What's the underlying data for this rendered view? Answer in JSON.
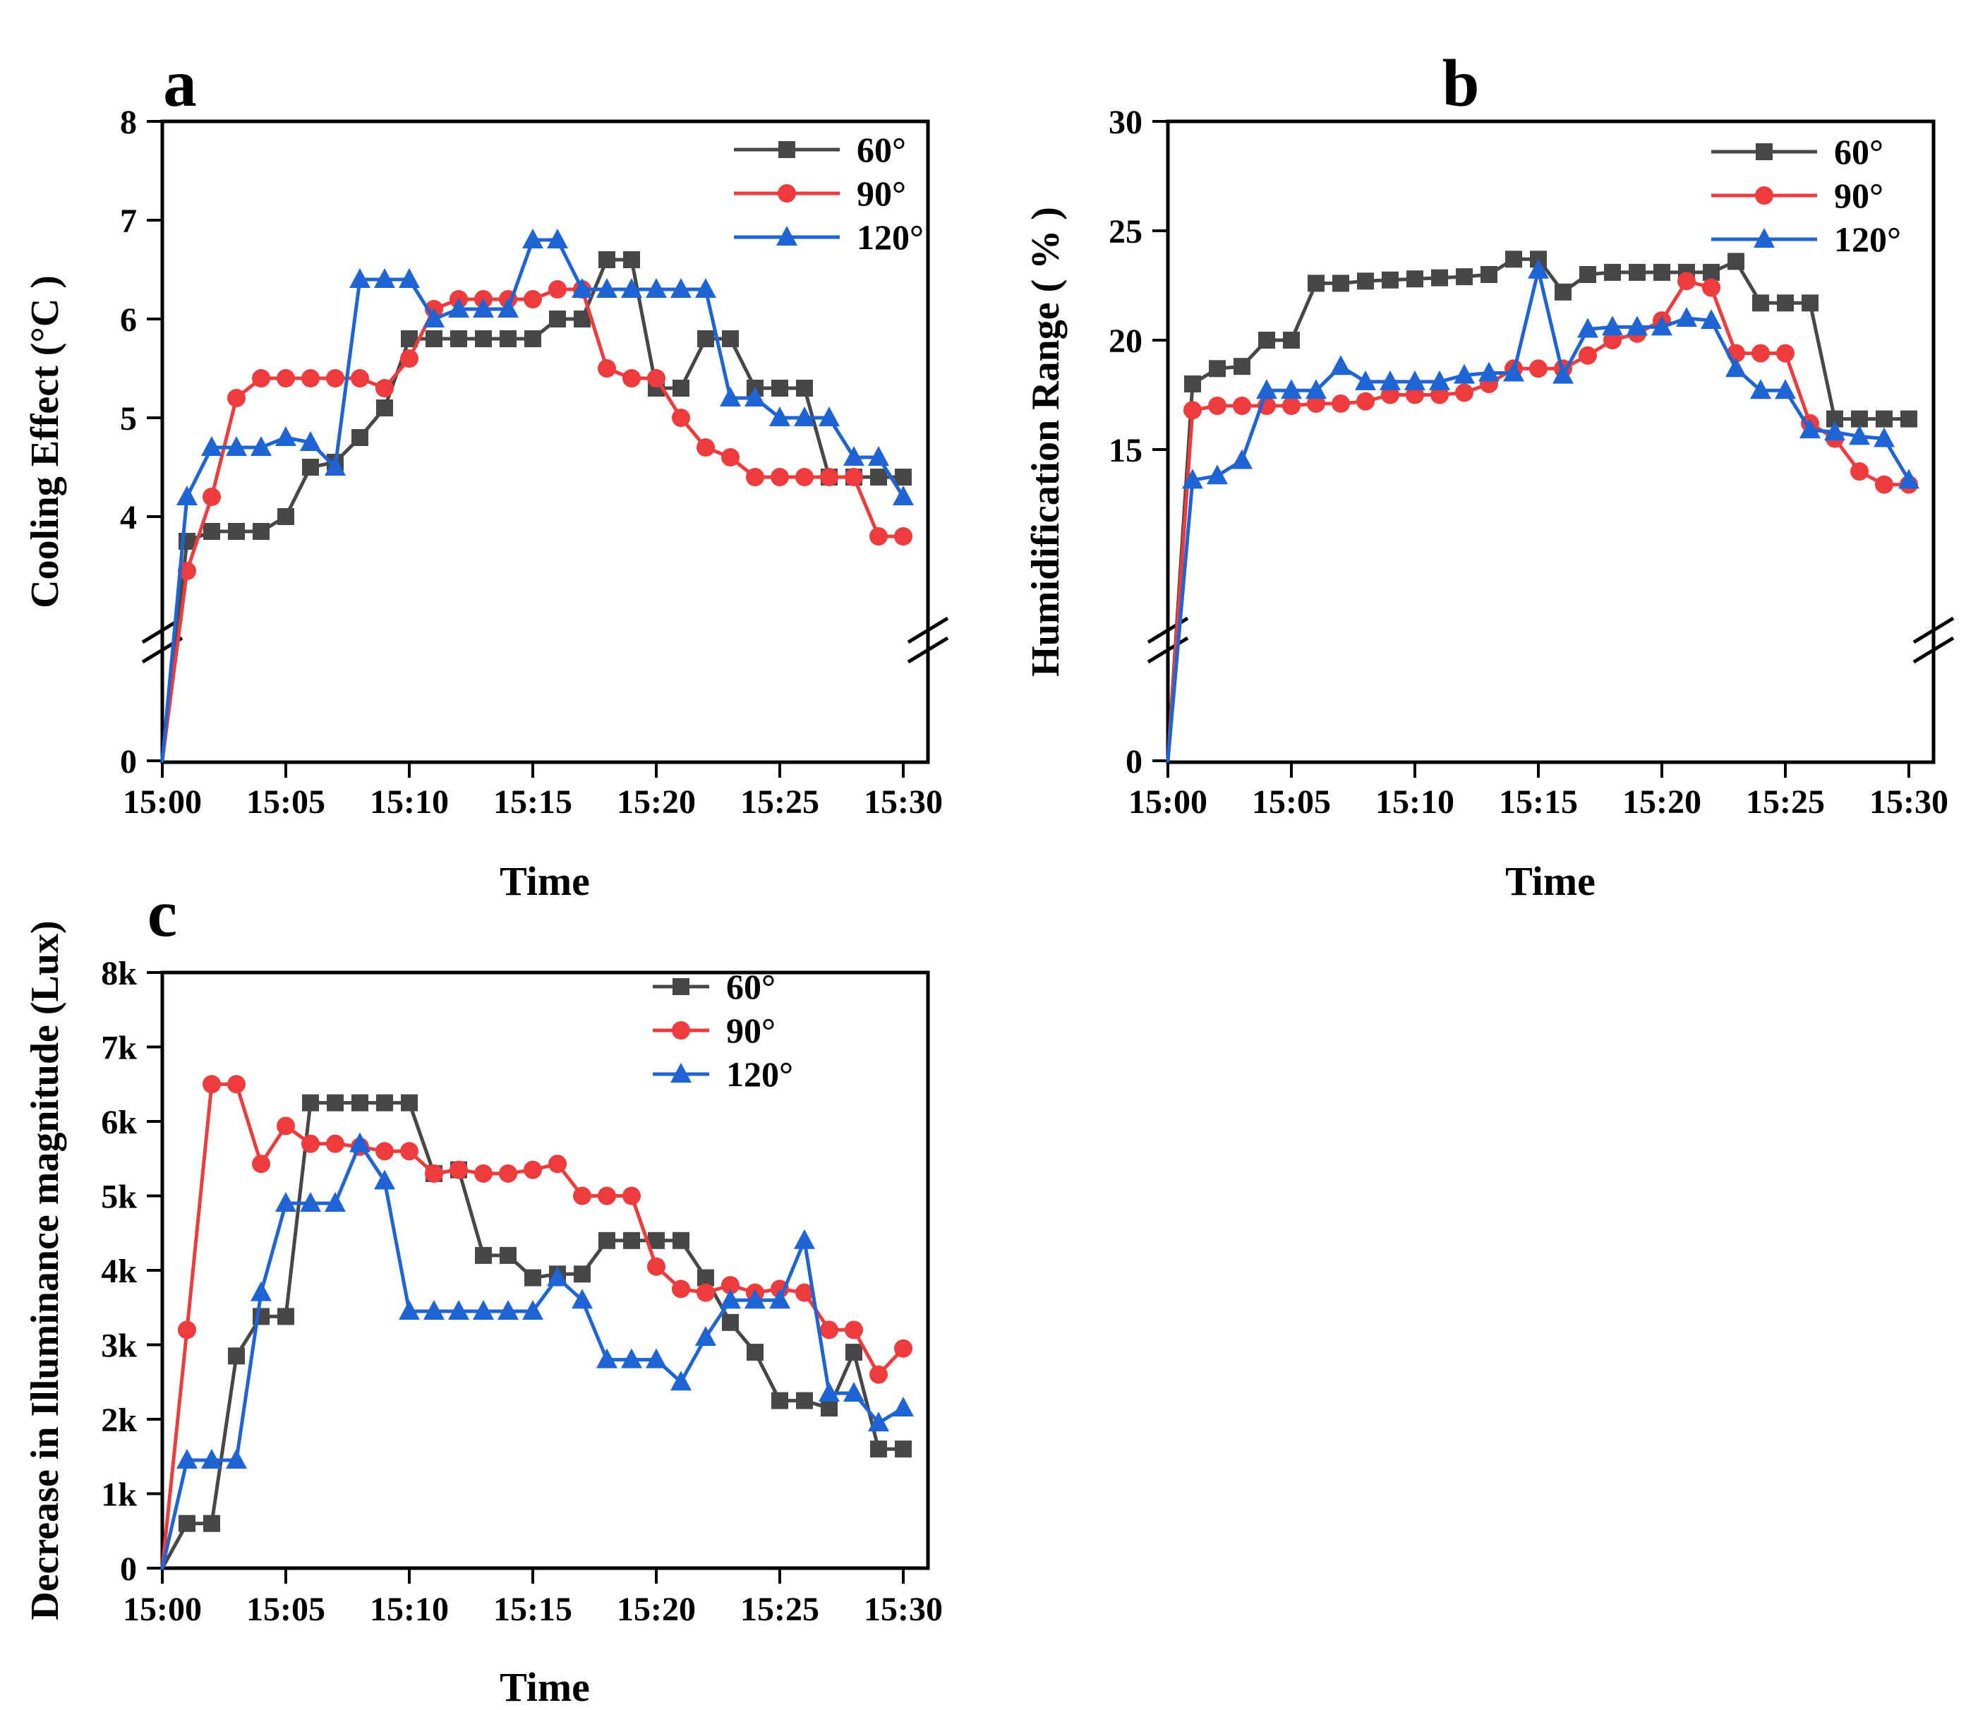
{
  "figure": {
    "background": "#ffffff",
    "panel_labels": [
      "a",
      "b",
      "c"
    ]
  },
  "legend_labels": [
    "60°",
    "90°",
    "120°"
  ],
  "series_colors": {
    "60°": "#474747",
    "90°": "#ee3b3d",
    "120°": "#1f64d4"
  },
  "x_times": [
    "15:00",
    "15:01",
    "15:02",
    "15:03",
    "15:04",
    "15:05",
    "15:06",
    "15:07",
    "15:08",
    "15:09",
    "15:10",
    "15:11",
    "15:12",
    "15:13",
    "15:14",
    "15:15",
    "15:16",
    "15:17",
    "15:18",
    "15:19",
    "15:20",
    "15:21",
    "15:22",
    "15:23",
    "15:24",
    "15:25",
    "15:26",
    "15:27",
    "15:28",
    "15:29",
    "15:30"
  ],
  "chart_data": [
    {
      "id": "a",
      "panel_label": "a",
      "type": "line",
      "title": "",
      "xlabel": "Time",
      "ylabel": "Cooling Effect (°C )",
      "x_tick_labels": [
        "15:00",
        "15:05",
        "15:10",
        "15:15",
        "15:20",
        "15:25",
        "15:30"
      ],
      "ylim": [
        0,
        8
      ],
      "axis_break": true,
      "y_ticks": [
        {
          "v": 0,
          "label": "0"
        },
        {
          "v": 4,
          "label": "4"
        },
        {
          "v": 5,
          "label": "5"
        },
        {
          "v": 6,
          "label": "6"
        },
        {
          "v": 7,
          "label": "7"
        },
        {
          "v": 8,
          "label": "8"
        }
      ],
      "legend_position": "top-right-inside",
      "series": [
        {
          "name": "60°",
          "color": "#474747",
          "marker": "square",
          "values": [
            0,
            3.75,
            3.85,
            3.85,
            3.85,
            4.0,
            4.5,
            4.55,
            4.8,
            5.1,
            5.8,
            5.8,
            5.8,
            5.8,
            5.8,
            5.8,
            6.0,
            6.0,
            6.6,
            6.6,
            5.3,
            5.3,
            5.8,
            5.8,
            5.3,
            5.3,
            5.3,
            4.4,
            4.4,
            4.4,
            4.4
          ]
        },
        {
          "name": "90°",
          "color": "#ee3b3d",
          "marker": "circle",
          "values": [
            0,
            3.45,
            4.2,
            5.2,
            5.4,
            5.4,
            5.4,
            5.4,
            5.4,
            5.3,
            5.6,
            6.1,
            6.2,
            6.2,
            6.2,
            6.2,
            6.3,
            6.3,
            5.5,
            5.4,
            5.4,
            5.0,
            4.7,
            4.6,
            4.4,
            4.4,
            4.4,
            4.4,
            4.4,
            3.8,
            3.8
          ]
        },
        {
          "name": "120°",
          "color": "#1f64d4",
          "marker": "triangle",
          "values": [
            0,
            4.2,
            4.7,
            4.7,
            4.7,
            4.8,
            4.75,
            4.5,
            6.4,
            6.4,
            6.4,
            6.0,
            6.1,
            6.1,
            6.1,
            6.8,
            6.8,
            6.3,
            6.3,
            6.3,
            6.3,
            6.3,
            6.3,
            5.2,
            5.2,
            5.0,
            5.0,
            5.0,
            4.6,
            4.6,
            4.2
          ]
        }
      ]
    },
    {
      "id": "b",
      "panel_label": "b",
      "type": "line",
      "title": "",
      "xlabel": "Time",
      "ylabel": "Humidification Range ( % )",
      "x_tick_labels": [
        "15:00",
        "15:05",
        "15:10",
        "15:15",
        "15:20",
        "15:25",
        "15:30"
      ],
      "ylim": [
        0,
        30
      ],
      "axis_break": true,
      "y_ticks": [
        {
          "v": 0,
          "label": "0"
        },
        {
          "v": 15,
          "label": "15"
        },
        {
          "v": 20,
          "label": "20"
        },
        {
          "v": 25,
          "label": "25"
        },
        {
          "v": 30,
          "label": "30"
        }
      ],
      "legend_position": "top-right-inside",
      "series": [
        {
          "name": "60°",
          "color": "#474747",
          "marker": "square",
          "values": [
            0,
            18.0,
            18.7,
            18.8,
            20.0,
            20.0,
            22.6,
            22.6,
            22.7,
            22.75,
            22.8,
            22.85,
            22.9,
            23.0,
            23.7,
            23.7,
            22.2,
            23.0,
            23.1,
            23.1,
            23.1,
            23.1,
            23.1,
            23.6,
            21.7,
            21.7,
            21.7,
            16.4,
            16.4,
            16.4,
            16.4
          ]
        },
        {
          "name": "90°",
          "color": "#ee3b3d",
          "marker": "circle",
          "values": [
            0,
            16.8,
            17.0,
            17.0,
            17.0,
            17.0,
            17.1,
            17.1,
            17.2,
            17.5,
            17.5,
            17.5,
            17.6,
            18.0,
            18.7,
            18.7,
            18.7,
            19.3,
            20.0,
            20.3,
            20.9,
            22.7,
            22.4,
            19.4,
            19.4,
            19.4,
            16.2,
            15.5,
            14.0,
            13.4,
            13.4
          ]
        },
        {
          "name": "120°",
          "color": "#1f64d4",
          "marker": "triangle",
          "values": [
            0,
            13.6,
            13.8,
            14.5,
            17.7,
            17.7,
            17.7,
            18.8,
            18.1,
            18.1,
            18.1,
            18.1,
            18.4,
            18.5,
            18.5,
            23.2,
            18.4,
            20.5,
            20.6,
            20.6,
            20.6,
            21.0,
            20.9,
            18.7,
            17.7,
            17.7,
            15.9,
            15.8,
            15.6,
            15.5,
            13.6
          ]
        }
      ]
    },
    {
      "id": "c",
      "panel_label": "c",
      "type": "line",
      "title": "",
      "xlabel": "Time",
      "ylabel": "Decrease in Illuminance magnitude (Lux)",
      "x_tick_labels": [
        "15:00",
        "15:05",
        "15:10",
        "15:15",
        "15:20",
        "15:25",
        "15:30"
      ],
      "ylim": [
        0,
        8000
      ],
      "axis_break": false,
      "y_ticks": [
        {
          "v": 0,
          "label": "0"
        },
        {
          "v": 1000,
          "label": "1k"
        },
        {
          "v": 2000,
          "label": "2k"
        },
        {
          "v": 3000,
          "label": "3k"
        },
        {
          "v": 4000,
          "label": "4k"
        },
        {
          "v": 5000,
          "label": "5k"
        },
        {
          "v": 6000,
          "label": "6k"
        },
        {
          "v": 7000,
          "label": "7k"
        },
        {
          "v": 8000,
          "label": "8k"
        }
      ],
      "legend_position": "top-right-inside",
      "series": [
        {
          "name": "60°",
          "color": "#474747",
          "marker": "square",
          "values": [
            0,
            600,
            600,
            2850,
            3380,
            3380,
            6250,
            6250,
            6250,
            6250,
            6250,
            5300,
            5350,
            4200,
            4200,
            3900,
            3950,
            3950,
            4400,
            4400,
            4400,
            4400,
            3900,
            3300,
            2900,
            2250,
            2250,
            2150,
            2900,
            1600,
            1600
          ]
        },
        {
          "name": "90°",
          "color": "#ee3b3d",
          "marker": "circle",
          "values": [
            0,
            3200,
            6500,
            6500,
            5430,
            5940,
            5700,
            5700,
            5660,
            5600,
            5600,
            5300,
            5350,
            5300,
            5300,
            5350,
            5430,
            5000,
            5000,
            5000,
            4050,
            3750,
            3700,
            3800,
            3700,
            3750,
            3700,
            3200,
            3200,
            2600,
            2950
          ]
        },
        {
          "name": "120°",
          "color": "#1f64d4",
          "marker": "triangle",
          "values": [
            0,
            1450,
            1450,
            1450,
            3700,
            4900,
            4900,
            4900,
            5700,
            5200,
            3450,
            3450,
            3450,
            3450,
            3450,
            3450,
            3900,
            3600,
            2800,
            2800,
            2800,
            2500,
            3100,
            3600,
            3600,
            3600,
            4400,
            2350,
            2350,
            1950,
            2150
          ]
        }
      ]
    }
  ]
}
